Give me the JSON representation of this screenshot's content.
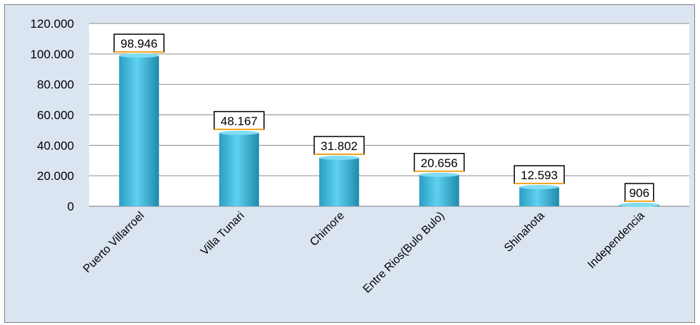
{
  "chart_data": {
    "type": "bar",
    "categories": [
      "Puerto Villarroel",
      "Villa Tunari",
      "Chimore",
      "Entre Rios(Bulo Bulo)",
      "Shinahota",
      "Independencia"
    ],
    "values": [
      98946,
      48167,
      31802,
      20656,
      12593,
      906
    ],
    "value_labels": [
      "98.946",
      "48.167",
      "31.802",
      "20.656",
      "12.593",
      "906"
    ],
    "ylim": [
      0,
      120000
    ],
    "y_ticks": [
      0,
      20000,
      40000,
      60000,
      80000,
      100000,
      120000
    ],
    "y_tick_labels": [
      "0",
      "20.000",
      "40.000",
      "60.000",
      "80.000",
      "100.000",
      "120.000"
    ],
    "grid": true,
    "legend": "none",
    "colors": {
      "background": "#dbe5f1",
      "plot_area": "#ffffff",
      "bar_light": "#4cc3e6",
      "bar_dark": "#1e8aab",
      "gridline": "#8c8c8c",
      "label_border_top": "#000000",
      "label_border_bottom": "#f5a623"
    }
  }
}
